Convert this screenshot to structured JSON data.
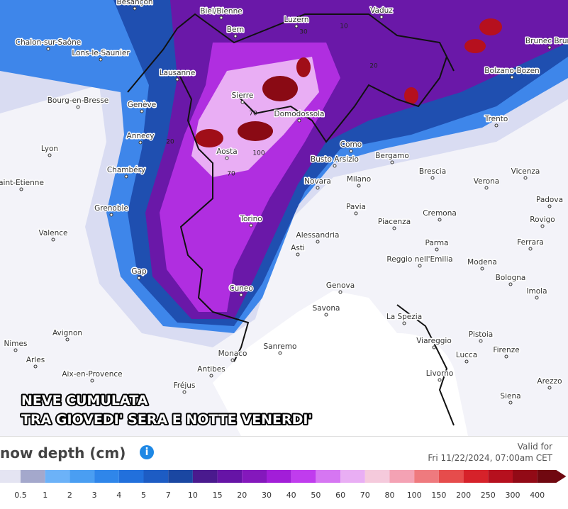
{
  "map": {
    "cities": [
      "Besançon",
      "Biel/Bienne",
      "Luzern",
      "Vaduz",
      "Bern",
      "Chalon-sur-Saône",
      "Lons-le-Saunier",
      "Brunec Bruni",
      "Bolzano-Bozen",
      "Lausanne",
      "Sierre",
      "Domodossola",
      "Bourg-en-Bresse",
      "Genève",
      "Trento",
      "Annecy",
      "Aosta",
      "Como",
      "Bergamo",
      "Busto Arsizio",
      "Lyon",
      "Chambéry",
      "Brescia",
      "Vicenza",
      "aint-Etienne",
      "Milano",
      "Novara",
      "Verona",
      "Padova",
      "Grenoble",
      "Pavia",
      "Cremona",
      "Rovigo",
      "Torino",
      "Piacenza",
      "Valence",
      "Alessandria",
      "Ferrara",
      "Parma",
      "Asti",
      "Reggio nell'Emilia",
      "Modena",
      "Gap",
      "Bologna",
      "Genova",
      "Cuneo",
      "Imola",
      "Savona",
      "La Spezia",
      "Avignon",
      "Pistoia",
      "Nimes",
      "Viareggio",
      "Sanremo",
      "Firenze",
      "Monaco",
      "Lucca",
      "Arles",
      "Antibes",
      "Livorno",
      "Aix-en-Provence",
      "Arezzo",
      "Fréjus",
      "Siena"
    ],
    "contour_labels": [
      "70",
      "100",
      "70",
      "20",
      "30",
      "20",
      "10"
    ],
    "overlay_title": [
      "NEVE CUMULATA",
      "TRA GIOVEDI' SERA E NOTTE VENERDI'"
    ]
  },
  "legend": {
    "title": "now depth (cm)",
    "info_icon": "i",
    "valid_for": "Valid for",
    "valid_time": "Fri 11/22/2024, 07:00am CET",
    "ticks": [
      0.5,
      1,
      2,
      3,
      4,
      5,
      7,
      10,
      15,
      20,
      30,
      40,
      50,
      60,
      70,
      80,
      100,
      150,
      200,
      250,
      300,
      400
    ],
    "colors": [
      "#e4e4f2",
      "#a4a8cc",
      "#6cb2f8",
      "#4a9ef2",
      "#2f86ea",
      "#2270dc",
      "#1d5cc4",
      "#1a47a2",
      "#4a1a8e",
      "#6614a6",
      "#8418bc",
      "#a21ed8",
      "#c03cee",
      "#d676f2",
      "#e9aef4",
      "#f5cadc",
      "#f4a2b4",
      "#ef7a7e",
      "#e64c4c",
      "#d6222a",
      "#b6101e",
      "#920a16",
      "#700810"
    ]
  }
}
